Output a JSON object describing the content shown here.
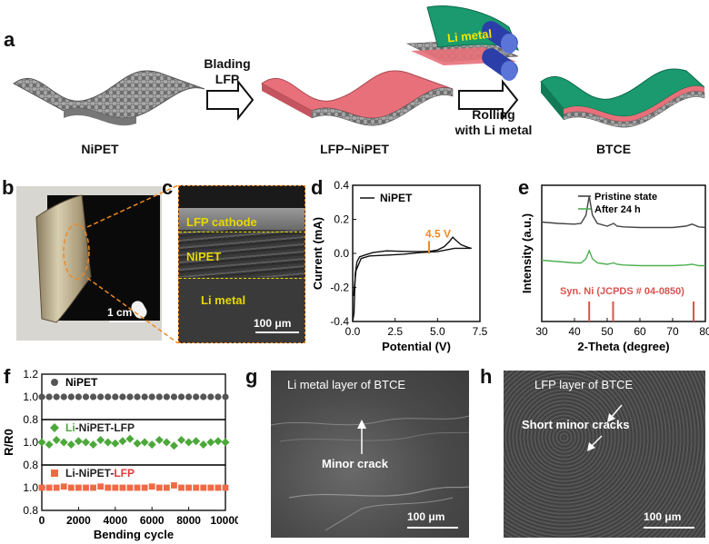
{
  "panels": {
    "a": {
      "label": "a",
      "step1_label_line1": "Blading",
      "step1_label_line2": "LFP",
      "step2_label_line1": "Rolling",
      "step2_label_line2": "with Li metal",
      "li_metal_label": "Li metal",
      "captions": [
        "NiPET",
        "LFP−NiPET",
        "BTCE"
      ]
    },
    "b": {
      "label": "b",
      "scale_bar": "1 cm"
    },
    "c": {
      "label": "c",
      "layer_lfp": "LFP cathode",
      "layer_nipet": "NiPET",
      "layer_li": "Li metal",
      "scale_bar": "100 μm"
    },
    "d": {
      "label": "d",
      "annotation": "4.5 V"
    },
    "e": {
      "label": "e"
    },
    "f": {
      "label": "f"
    },
    "g": {
      "label": "g",
      "title": "Li metal layer of BTCE",
      "annotation": "Minor crack",
      "scale_bar": "100 μm"
    },
    "h": {
      "label": "h",
      "title": "LFP layer of BTCE",
      "annotation": "Short minor cracks",
      "scale_bar": "100 μm"
    }
  },
  "colors": {
    "lfp": "#e8707a",
    "li_metal": "#1a9a6e",
    "mesh": "#8c8c8c",
    "nipet_dot": "#555555",
    "lfp_diamond": "#4ca83a",
    "li_square": "#f06a45",
    "orange": "#f08a24",
    "red_accent": "#e03a3a",
    "green_curve": "#4caf50"
  },
  "chart_data": [
    {
      "id": "d",
      "type": "line",
      "xlabel": "Potential (V)",
      "ylabel": "Current (mA)",
      "xlim": [
        0,
        7.5
      ],
      "ylim": [
        -0.4,
        0.4
      ],
      "xticks": [
        0.0,
        2.5,
        5.0,
        7.5
      ],
      "xtick_labels": [
        "0.0",
        "2.5",
        "5.0",
        "7.5"
      ],
      "yticks": [
        -0.4,
        -0.2,
        0.0,
        0.2,
        0.4
      ],
      "ytick_labels": [
        "-0.4",
        "-0.2",
        "0.0",
        "0.2",
        "0.4"
      ],
      "legend_position": "top-left",
      "series": [
        {
          "name": "NiPET",
          "x": [
            0.0,
            0.08,
            0.15,
            0.25,
            0.4,
            0.7,
            1.2,
            2.0,
            3.0,
            4.0,
            4.5,
            5.0,
            5.4,
            5.7,
            5.9,
            6.1,
            6.4,
            6.8,
            7.0
          ],
          "y": [
            -0.4,
            -0.35,
            -0.12,
            -0.05,
            -0.02,
            -0.01,
            0.005,
            0.015,
            0.012,
            0.01,
            0.012,
            0.02,
            0.04,
            0.07,
            0.095,
            0.075,
            0.05,
            0.035,
            0.03
          ]
        },
        {
          "name": "",
          "x": [
            7.0,
            6.0,
            5.0,
            4.0,
            3.0,
            2.0,
            1.0,
            0.5,
            0.2,
            0.05
          ],
          "y": [
            0.03,
            0.03,
            0.01,
            0.005,
            -0.005,
            -0.01,
            -0.015,
            -0.03,
            -0.1,
            -0.25
          ]
        }
      ],
      "annotations": [
        {
          "x": 4.5,
          "y": 0.03,
          "text": "4.5 V"
        }
      ]
    },
    {
      "id": "e",
      "type": "line",
      "xlabel": "2-Theta (degree)",
      "ylabel": "Intensity (a.u.)",
      "xlim": [
        30,
        80
      ],
      "xticks": [
        30,
        40,
        50,
        60,
        70,
        80
      ],
      "xtick_labels": [
        "30",
        "40",
        "50",
        "60",
        "70",
        "80"
      ],
      "yticks_shown": false,
      "legend_position": "top-right",
      "series": [
        {
          "name": "Pristine state",
          "color": "#444444",
          "x": [
            30,
            35,
            40,
            42,
            43.5,
            44.5,
            45.5,
            47,
            50,
            52,
            53,
            55,
            60,
            65,
            70,
            74,
            76,
            78,
            80
          ],
          "y": [
            0.73,
            0.72,
            0.715,
            0.72,
            0.78,
            0.92,
            0.78,
            0.72,
            0.7,
            0.72,
            0.7,
            0.695,
            0.69,
            0.69,
            0.69,
            0.7,
            0.715,
            0.695,
            0.69
          ]
        },
        {
          "name": "After 24 h",
          "color": "#4caf50",
          "x": [
            30,
            35,
            40,
            42,
            43.5,
            44.5,
            45.5,
            47,
            50,
            52,
            53,
            55,
            60,
            65,
            70,
            74,
            76,
            78,
            80
          ],
          "y": [
            0.45,
            0.44,
            0.43,
            0.43,
            0.46,
            0.52,
            0.46,
            0.43,
            0.42,
            0.43,
            0.42,
            0.415,
            0.41,
            0.41,
            0.41,
            0.415,
            0.42,
            0.41,
            0.41
          ]
        }
      ],
      "reference": {
        "label": "Syn. Ni (JCPDS # 04-0850)",
        "color": "#d9534f",
        "x": [
          44.5,
          51.8,
          76.4
        ]
      }
    },
    {
      "id": "f",
      "type": "scatter",
      "xlabel": "Bending cycle",
      "ylabel": "R/R0",
      "xlim": [
        0,
        10000
      ],
      "xticks": [
        0,
        2000,
        4000,
        6000,
        8000,
        10000
      ],
      "xtick_labels": [
        "0",
        "2000",
        "4000",
        "6000",
        "8000",
        "10000"
      ],
      "subplot_ylim": [
        0.8,
        1.2
      ],
      "yticks": [
        0.8,
        1.0,
        1.2
      ],
      "ytick_labels": [
        "0.8",
        "1.0",
        "1.2"
      ],
      "x": [
        0,
        400,
        800,
        1200,
        1600,
        2000,
        2400,
        2800,
        3200,
        3600,
        4000,
        4400,
        4800,
        5200,
        5600,
        6000,
        6400,
        6800,
        7200,
        7600,
        8000,
        8400,
        8800,
        9200,
        9600,
        10000
      ],
      "series": [
        {
          "name": "NiPET",
          "marker": "circle",
          "color": "#555555",
          "values": [
            1.0,
            1.0,
            1.0,
            1.0,
            1.0,
            1.0,
            1.0,
            1.0,
            1.0,
            1.0,
            1.0,
            1.0,
            1.0,
            1.0,
            1.0,
            1.0,
            1.0,
            1.0,
            1.0,
            1.0,
            1.0,
            1.0,
            1.0,
            1.0,
            1.0,
            1.0
          ]
        },
        {
          "name": "Li-NiPET-LFP",
          "marker": "diamond",
          "color": "#4ca83a",
          "name_parts": [
            {
              "t": "Li",
              "c": "#4ca83a"
            },
            {
              "t": "-NiPET-LFP",
              "c": "#222222"
            }
          ],
          "values": [
            1.0,
            0.98,
            1.02,
            1.0,
            0.98,
            1.01,
            1.0,
            0.98,
            1.02,
            1.0,
            0.99,
            1.01,
            1.03,
            0.99,
            1.0,
            0.98,
            1.02,
            1.0,
            0.97,
            1.02,
            1.0,
            1.01,
            0.98,
            1.0,
            1.01,
            1.0
          ]
        },
        {
          "name": "Li-NiPET-LFP",
          "marker": "square",
          "color": "#f06a45",
          "name_parts": [
            {
              "t": "Li-NiPET-",
              "c": "#222222"
            },
            {
              "t": "LFP",
              "c": "#e03a3a"
            }
          ],
          "values": [
            1.0,
            1.0,
            1.0,
            1.01,
            1.0,
            1.0,
            1.0,
            1.0,
            1.01,
            1.0,
            1.0,
            1.0,
            1.0,
            1.0,
            1.0,
            1.01,
            1.0,
            1.0,
            1.02,
            1.0,
            1.0,
            1.0,
            1.0,
            1.0,
            1.0,
            1.0
          ]
        }
      ]
    }
  ]
}
